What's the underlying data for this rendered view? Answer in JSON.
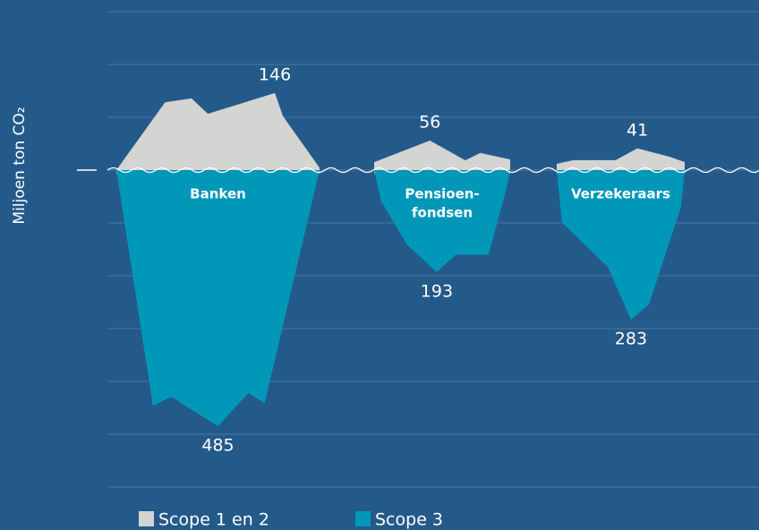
{
  "chart_data": {
    "type": "iceberg",
    "y_axis_label": "Miljoen ton CO₂",
    "categories": [
      [
        "Banken"
      ],
      [
        "Pensioen-",
        "fondsen"
      ],
      [
        "Verzekeraars"
      ]
    ],
    "series": [
      {
        "name": "Scope 1 en 2",
        "color": "#d4d4d2",
        "values": [
          146,
          56,
          41
        ]
      },
      {
        "name": "Scope 3",
        "color": "#0097b8",
        "values": [
          485,
          193,
          283
        ]
      }
    ],
    "ylim": [
      -600,
      300
    ],
    "yticks": [
      -600,
      -500,
      -400,
      -300,
      -200,
      -100,
      0,
      100,
      200,
      300
    ],
    "grid": true
  }
}
